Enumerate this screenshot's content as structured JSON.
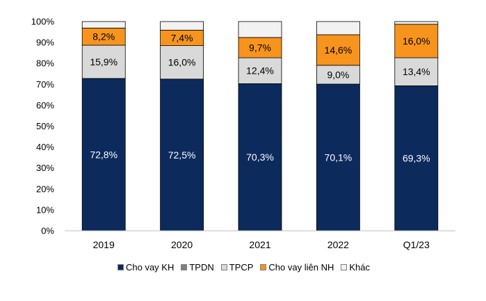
{
  "chart_data": {
    "type": "bar",
    "stacked": true,
    "categories": [
      "2019",
      "2020",
      "2021",
      "2022",
      "Q1/23"
    ],
    "series": [
      {
        "name": "Cho vay KH",
        "color": "#0c2a5c",
        "values": [
          72.8,
          72.5,
          70.3,
          70.1,
          69.3
        ],
        "labels": [
          "72,8%",
          "72,5%",
          "70,3%",
          "70,1%",
          "69,3%"
        ],
        "label_color": "#ffffff"
      },
      {
        "name": "TPDN",
        "color": "#7f7f7f",
        "values": [
          0,
          0,
          0,
          0,
          0
        ],
        "labels": [
          "",
          "",
          "",
          "",
          ""
        ],
        "label_color": "#000000"
      },
      {
        "name": "TPCP",
        "color": "#d9d9d9",
        "values": [
          15.9,
          16.0,
          12.4,
          9.0,
          13.4
        ],
        "labels": [
          "15,9%",
          "16,0%",
          "12,4%",
          "9,0%",
          "13,4%"
        ],
        "label_color": "#000000"
      },
      {
        "name": "Cho vay liên NH",
        "color": "#f7941d",
        "values": [
          8.2,
          7.4,
          9.7,
          14.6,
          16.0
        ],
        "labels": [
          "8,2%",
          "7,4%",
          "9,7%",
          "14,6%",
          "16,0%"
        ],
        "label_color": "#000000"
      },
      {
        "name": "Khác",
        "color": "#f2f2f2",
        "values": [
          3.1,
          4.1,
          7.6,
          6.3,
          1.3
        ],
        "labels": [
          "",
          "",
          "",
          "",
          ""
        ],
        "label_color": "#000000"
      }
    ],
    "y_ticks": [
      "0%",
      "10%",
      "20%",
      "30%",
      "40%",
      "50%",
      "60%",
      "70%",
      "80%",
      "90%",
      "100%"
    ],
    "ylim": [
      0,
      100
    ],
    "grid": false,
    "legend_position": "bottom",
    "title": "",
    "xlabel": "",
    "ylabel": ""
  }
}
